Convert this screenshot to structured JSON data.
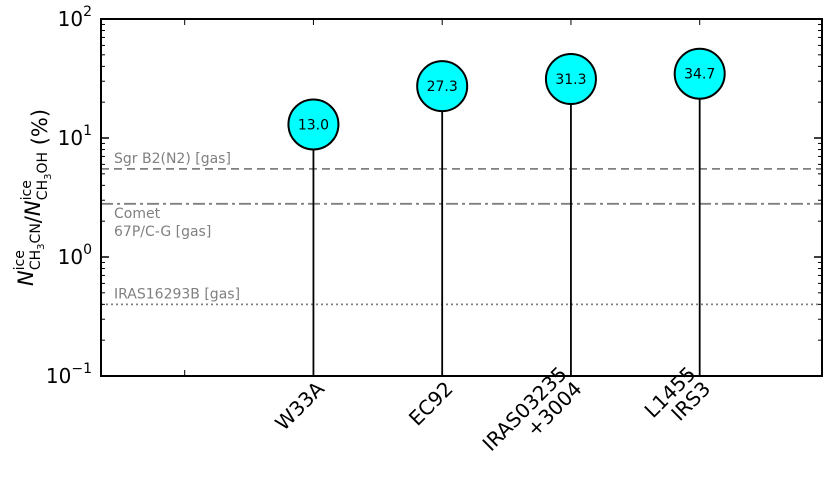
{
  "chart_data": {
    "type": "scatter",
    "style": "lollipop",
    "yscale": "log",
    "ylim": [
      0.1,
      100
    ],
    "ylabel": {
      "symbol": "N",
      "num_sub": "CH3CN",
      "den_sub": "CH3OH",
      "sup": "ice",
      "unit": "(%)"
    },
    "yticks": [
      {
        "value": 0.1,
        "label_base": "10",
        "label_exp": "−1"
      },
      {
        "value": 1,
        "label_base": "10",
        "label_exp": "0"
      },
      {
        "value": 10,
        "label_base": "10",
        "label_exp": "1"
      },
      {
        "value": 100,
        "label_base": "10",
        "label_exp": "2"
      }
    ],
    "categories": [
      {
        "lines": [
          "W33A"
        ]
      },
      {
        "lines": [
          "EC92"
        ]
      },
      {
        "lines": [
          "IRAS03235",
          "+3004"
        ]
      },
      {
        "lines": [
          "L1455",
          "IRS3"
        ]
      }
    ],
    "values": [
      13.0,
      27.3,
      31.3,
      34.7
    ],
    "value_labels": [
      "13.0",
      "27.3",
      "31.3",
      "34.7"
    ],
    "marker_color": "#00ffff",
    "reference_lines": [
      {
        "value": 5.5,
        "style": "dashed",
        "label_lines": [
          "Sgr B2(N2) [gas]"
        ]
      },
      {
        "value": 2.8,
        "style": "dashdot",
        "label_lines": [
          "Comet",
          " 67P/C-G [gas]"
        ]
      },
      {
        "value": 0.4,
        "style": "dotted",
        "label_lines": [
          "IRAS16293B [gas]"
        ]
      }
    ],
    "reference_color": "#808080",
    "grid": false
  }
}
